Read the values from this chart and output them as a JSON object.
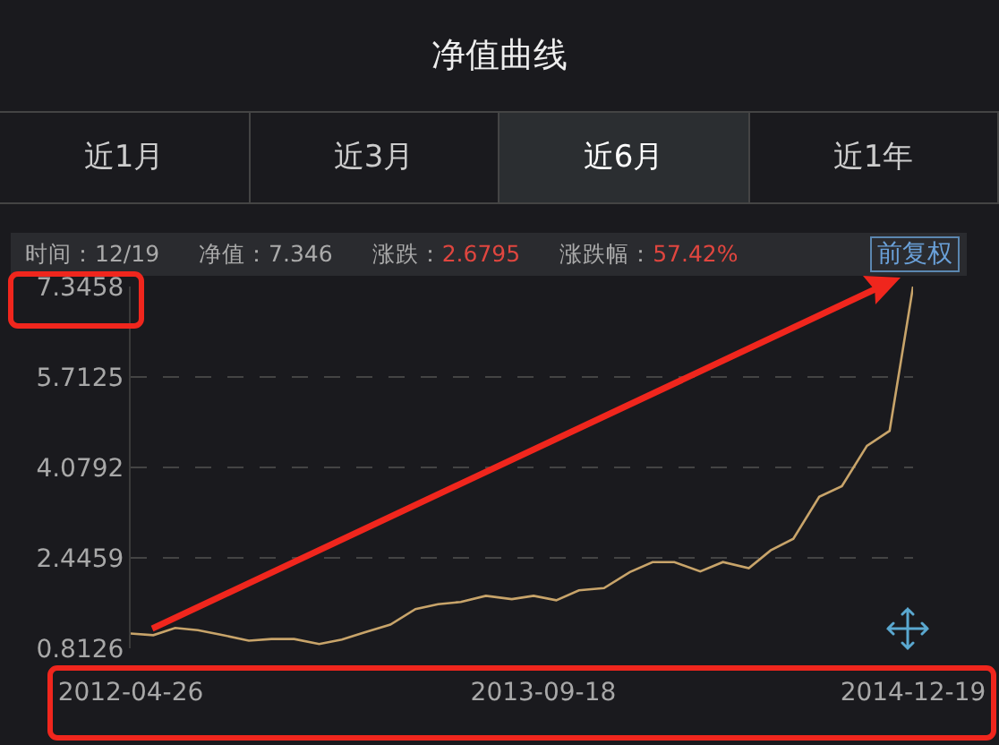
{
  "chart_data": {
    "type": "line",
    "title": "净值曲线",
    "annotations": [
      "近1月",
      "近3月",
      "近6月",
      "近1年",
      "时间：12/19",
      "净值：7.346",
      "涨跌：2.6795",
      "涨跌幅：57.42%",
      "前复权"
    ],
    "x": [
      "2012-04-26",
      "2012-05-24",
      "2012-06-20",
      "2012-07-18",
      "2012-08-15",
      "2012-09-19",
      "2012-10-17",
      "2012-11-14",
      "2012-12-15",
      "2013-01-12",
      "2013-02-09",
      "2013-03-13",
      "2013-04-13",
      "2013-05-11",
      "2013-06-08",
      "2013-07-09",
      "2013-08-10",
      "2013-09-06",
      "2013-10-04",
      "2013-11-01",
      "2013-12-02",
      "2014-01-03",
      "2014-01-31",
      "2014-02-27",
      "2014-03-31",
      "2014-04-28",
      "2014-05-30",
      "2014-06-26",
      "2014-07-24",
      "2014-08-25",
      "2014-09-22",
      "2014-10-23",
      "2014-11-20",
      "2014-12-19"
    ],
    "series": [
      {
        "color": "#c8a46a",
        "values": [
          1.08,
          1.05,
          1.18,
          1.14,
          1.06,
          0.95,
          0.98,
          0.98,
          0.89,
          0.97,
          1.1,
          1.24,
          1.52,
          1.61,
          1.65,
          1.76,
          1.7,
          1.76,
          1.68,
          1.86,
          1.9,
          2.19,
          2.37,
          2.37,
          2.2,
          2.37,
          2.26,
          2.58,
          2.79,
          3.55,
          3.74,
          4.47,
          4.74,
          7.3458
        ]
      }
    ],
    "xlim": [
      "2012-04-26",
      "2014-12-19"
    ],
    "xticks": [
      "2012-04-26",
      "2013-09-18",
      "2014-12-19"
    ],
    "ylim": [
      0.8126,
      7.3458
    ],
    "yticks": [
      0.8126,
      2.4459,
      4.0792,
      5.7125,
      7.3458
    ],
    "grid": "y",
    "legend": false,
    "marker": "none",
    "line_style": "solid"
  }
}
